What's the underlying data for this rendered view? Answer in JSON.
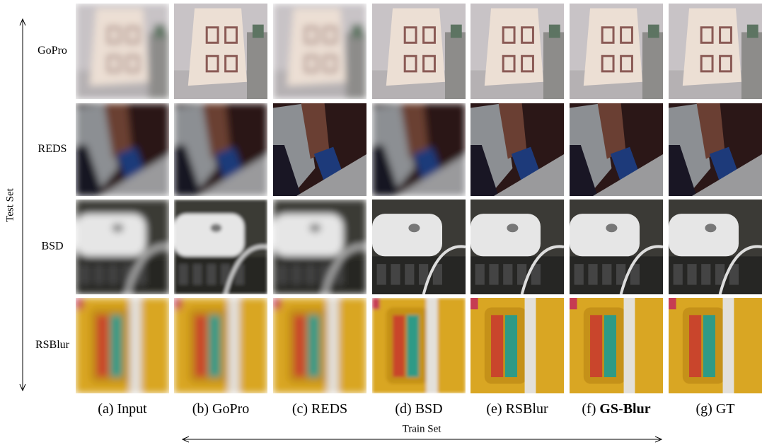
{
  "figure": {
    "y_axis_label": "Test Set",
    "rows": [
      "GoPro",
      "REDS",
      "BSD",
      "RSBlur"
    ],
    "columns": [
      {
        "prefix": "(a)",
        "name": "Input"
      },
      {
        "prefix": "(b)",
        "name": "GoPro"
      },
      {
        "prefix": "(c)",
        "name": "REDS"
      },
      {
        "prefix": "(d)",
        "name": "BSD"
      },
      {
        "prefix": "(e)",
        "name": "RSBlur"
      },
      {
        "prefix": "(f)",
        "name": "GS-Blur",
        "bold": true
      },
      {
        "prefix": "(g)",
        "name": "GT"
      }
    ],
    "x_axis_label": "Train Set"
  }
}
